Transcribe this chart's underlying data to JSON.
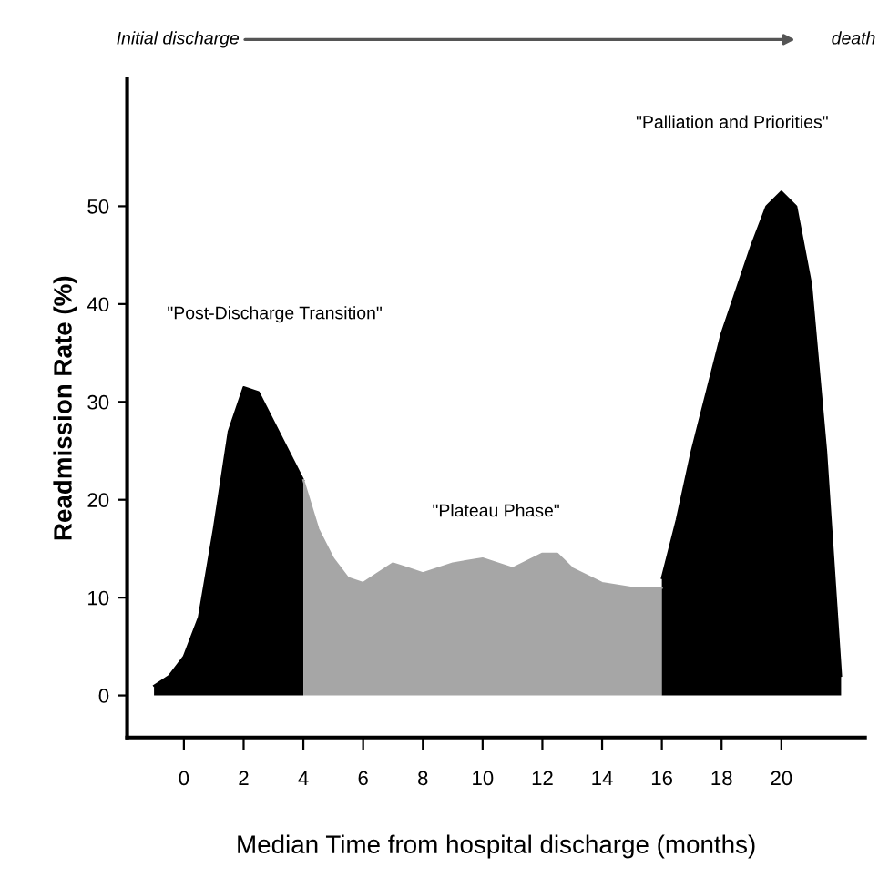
{
  "chart_data": {
    "type": "area",
    "xlabel": "Median Time from hospital discharge (months)",
    "ylabel": "Readmission Rate (%)",
    "xlim": [
      -1.9,
      22.8
    ],
    "xticks": [
      0,
      2,
      4,
      6,
      8,
      10,
      12,
      14,
      16,
      18,
      20
    ],
    "ylim": [
      -4.3,
      63
    ],
    "yticks": [
      0,
      10,
      20,
      30,
      40,
      50
    ],
    "series": [
      {
        "color": "#000000",
        "x": [
          -1,
          -0.5,
          0,
          0.5,
          1,
          1.5,
          2,
          2.5,
          3,
          3.5,
          4
        ],
        "values": [
          1,
          2,
          4,
          8,
          17,
          27,
          31.5,
          31,
          28,
          25,
          22
        ]
      },
      {
        "color": "#a6a6a6",
        "x": [
          4,
          4.5,
          5,
          5.5,
          6,
          6.5,
          7,
          7.5,
          8,
          9,
          10,
          11,
          12,
          12.5,
          13,
          14,
          15,
          16
        ],
        "values": [
          22,
          17,
          14,
          12,
          11.5,
          12.5,
          13.5,
          13,
          12.5,
          13.5,
          14,
          13,
          14.5,
          14.5,
          13,
          11.5,
          11,
          11
        ]
      },
      {
        "color": "#000000",
        "x": [
          16,
          16.5,
          17,
          18,
          19,
          19.5,
          20,
          20.5,
          21,
          21.5,
          22
        ],
        "values": [
          12,
          18,
          25,
          37,
          46,
          50,
          51.5,
          50,
          42,
          25,
          2
        ]
      }
    ],
    "annotations": [
      "Initial discharge",
      "death",
      "\"Post-Discharge Transition\"",
      "\"Plateau Phase\"",
      "\"Palliation and Priorities\""
    ]
  }
}
